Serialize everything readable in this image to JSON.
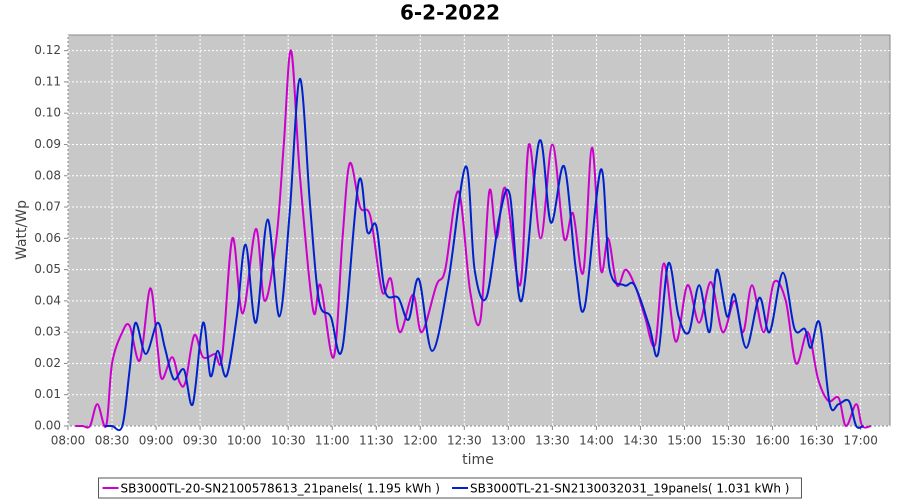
{
  "chart_data": {
    "type": "line",
    "title": "6-2-2022",
    "x_label": "time",
    "y_label": "Watt/Wp",
    "xlim": [
      "08:00",
      "17:20"
    ],
    "xticks": [
      "08:00",
      "08:30",
      "09:00",
      "09:30",
      "10:00",
      "10:30",
      "11:00",
      "11:30",
      "12:00",
      "12:30",
      "13:00",
      "13:30",
      "14:00",
      "14:30",
      "15:00",
      "15:30",
      "16:00",
      "16:30",
      "17:00"
    ],
    "ylim": [
      0,
      0.125
    ],
    "yticks": [
      {
        "value": 0,
        "label": "0.00"
      },
      {
        "value": 0.01,
        "label": "0.01"
      },
      {
        "value": 0.02,
        "label": "0.02"
      },
      {
        "value": 0.03,
        "label": "0.03"
      },
      {
        "value": 0.04,
        "label": "0.04"
      },
      {
        "value": 0.05,
        "label": "0.05"
      },
      {
        "value": 0.06,
        "label": "0.06"
      },
      {
        "value": 0.07,
        "label": "0.07"
      },
      {
        "value": 0.08,
        "label": "0.08"
      },
      {
        "value": 0.09,
        "label": "0.09"
      },
      {
        "value": 0.1,
        "label": "0.10"
      },
      {
        "value": 0.11,
        "label": "0.11"
      },
      {
        "value": 0.12,
        "label": "0.12"
      }
    ],
    "grid": true,
    "legend": "bottom",
    "series": [
      {
        "name": "SB3000TL-20-SN2100578613_21panels( 1.195 kWh )",
        "color": "#cc00cc",
        "x": [
          "08:05",
          "08:10",
          "08:15",
          "08:20",
          "08:26",
          "08:30",
          "08:37",
          "08:42",
          "08:49",
          "08:56",
          "09:01",
          "09:04",
          "09:11",
          "09:16",
          "09:20",
          "09:26",
          "09:32",
          "09:40",
          "09:45",
          "09:52",
          "09:59",
          "10:08",
          "10:14",
          "10:22",
          "10:27",
          "10:32",
          "10:38",
          "10:47",
          "10:52",
          "11:01",
          "11:07",
          "11:12",
          "11:19",
          "11:26",
          "11:34",
          "11:40",
          "11:46",
          "11:55",
          "12:01",
          "12:11",
          "12:17",
          "12:26",
          "12:34",
          "12:41",
          "12:47",
          "12:52",
          "12:58",
          "13:08",
          "13:14",
          "13:22",
          "13:30",
          "13:38",
          "13:44",
          "13:51",
          "13:57",
          "14:03",
          "14:08",
          "14:14",
          "14:20",
          "14:27",
          "14:33",
          "14:40",
          "14:46",
          "14:54",
          "15:02",
          "15:10",
          "15:18",
          "15:26",
          "15:34",
          "15:40",
          "15:46",
          "15:54",
          "16:01",
          "16:09",
          "16:16",
          "16:24",
          "16:31",
          "16:38",
          "16:45",
          "16:50",
          "16:57",
          "17:01",
          "17:07"
        ],
        "values": [
          0,
          0,
          0,
          0.007,
          0,
          0.02,
          0.03,
          0.032,
          0.021,
          0.044,
          0.025,
          0.015,
          0.022,
          0.014,
          0.014,
          0.029,
          0.022,
          0.023,
          0.022,
          0.06,
          0.036,
          0.063,
          0.04,
          0.06,
          0.09,
          0.12,
          0.08,
          0.037,
          0.045,
          0.022,
          0.06,
          0.084,
          0.07,
          0.067,
          0.043,
          0.047,
          0.03,
          0.042,
          0.03,
          0.045,
          0.05,
          0.075,
          0.043,
          0.034,
          0.075,
          0.06,
          0.076,
          0.045,
          0.09,
          0.06,
          0.09,
          0.06,
          0.068,
          0.049,
          0.089,
          0.05,
          0.06,
          0.045,
          0.05,
          0.044,
          0.035,
          0.026,
          0.052,
          0.027,
          0.045,
          0.033,
          0.046,
          0.03,
          0.04,
          0.03,
          0.045,
          0.03,
          0.046,
          0.04,
          0.02,
          0.03,
          0.015,
          0.008,
          0.009,
          0,
          0.007,
          0,
          0
        ]
      },
      {
        "name": "SB3000TL-21-SN2130032031_19panels( 1.031 kWh )",
        "color": "#0022cc",
        "x": [
          "08:25",
          "08:30",
          "08:37",
          "08:42",
          "08:46",
          "08:53",
          "09:01",
          "09:06",
          "09:12",
          "09:19",
          "09:25",
          "09:32",
          "09:37",
          "09:42",
          "09:48",
          "09:55",
          "10:01",
          "10:08",
          "10:16",
          "10:24",
          "10:31",
          "10:38",
          "10:45",
          "10:51",
          "10:59",
          "11:07",
          "11:18",
          "11:24",
          "11:30",
          "11:36",
          "11:45",
          "11:52",
          "11:59",
          "12:08",
          "12:19",
          "12:31",
          "12:37",
          "12:45",
          "12:54",
          "13:01",
          "13:09",
          "13:21",
          "13:29",
          "13:38",
          "13:46",
          "13:52",
          "14:03",
          "14:09",
          "14:19",
          "14:26",
          "14:36",
          "14:42",
          "14:49",
          "14:56",
          "15:03",
          "15:10",
          "15:17",
          "15:22",
          "15:29",
          "15:34",
          "15:42",
          "15:51",
          "15:58",
          "16:07",
          "16:15",
          "16:22",
          "16:26",
          "16:32",
          "16:39",
          "16:45",
          "16:52",
          "16:57",
          "17:02"
        ],
        "values": [
          0,
          0,
          0,
          0.018,
          0.033,
          0.023,
          0.033,
          0.025,
          0.015,
          0.018,
          0.007,
          0.033,
          0.016,
          0.024,
          0.016,
          0.035,
          0.058,
          0.033,
          0.066,
          0.035,
          0.068,
          0.111,
          0.07,
          0.04,
          0.035,
          0.025,
          0.078,
          0.062,
          0.064,
          0.043,
          0.041,
          0.034,
          0.047,
          0.024,
          0.046,
          0.083,
          0.05,
          0.041,
          0.067,
          0.074,
          0.04,
          0.091,
          0.065,
          0.083,
          0.05,
          0.038,
          0.082,
          0.05,
          0.045,
          0.045,
          0.032,
          0.023,
          0.052,
          0.035,
          0.03,
          0.045,
          0.03,
          0.05,
          0.035,
          0.042,
          0.025,
          0.041,
          0.03,
          0.049,
          0.031,
          0.031,
          0.025,
          0.033,
          0.007,
          0.007,
          0.008,
          0,
          0
        ]
      }
    ]
  }
}
